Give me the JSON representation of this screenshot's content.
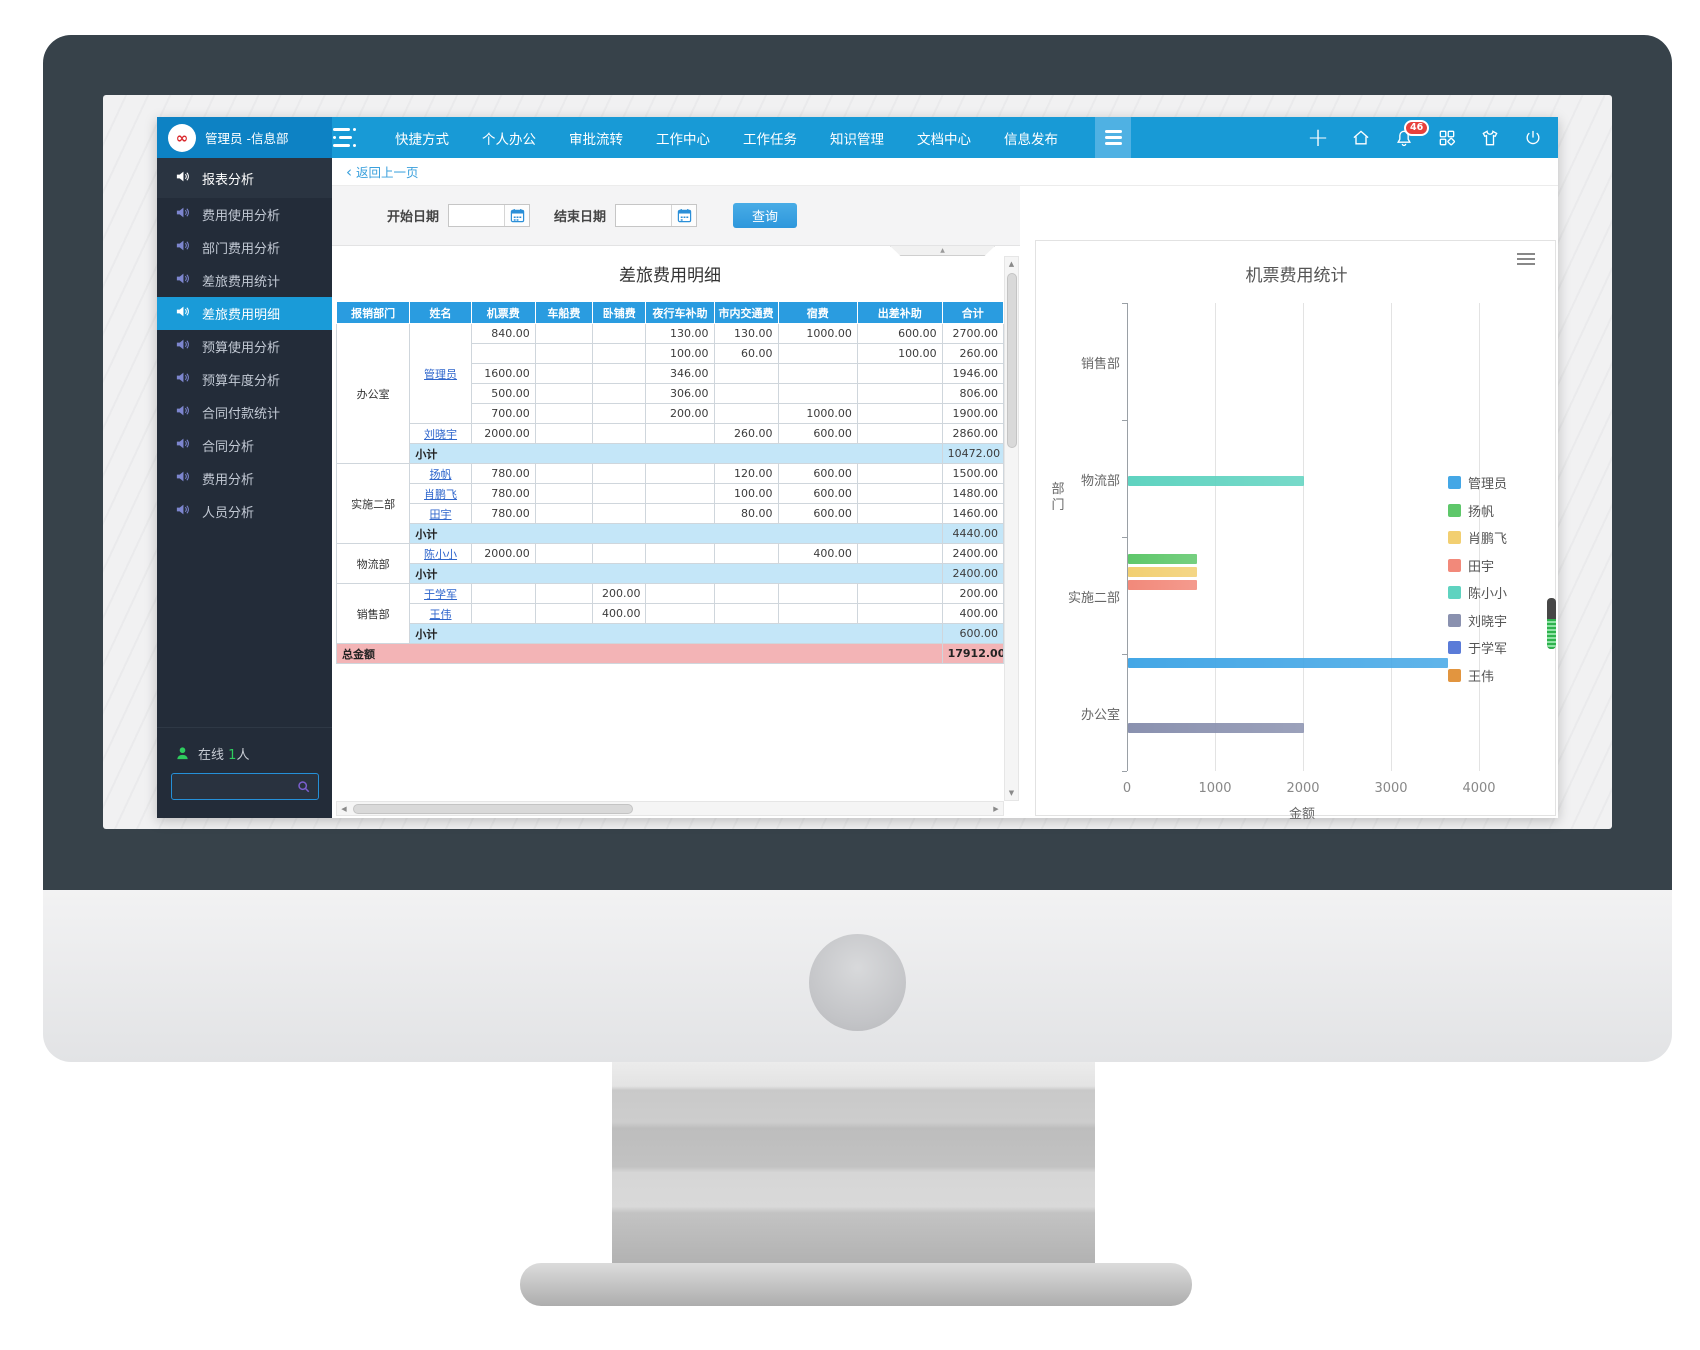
{
  "navbar": {
    "user_label": "管理员 -信息部",
    "menu": [
      "快捷方式",
      "个人办公",
      "审批流转",
      "工作中心",
      "工作任务",
      "知识管理",
      "文档中心",
      "信息发布"
    ],
    "badge_count": "46"
  },
  "sidebar": {
    "header": "报表分析",
    "items": [
      {
        "label": "费用使用分析",
        "active": false
      },
      {
        "label": "部门费用分析",
        "active": false
      },
      {
        "label": "差旅费用统计",
        "active": false
      },
      {
        "label": "差旅费用明细",
        "active": true
      },
      {
        "label": "预算使用分析",
        "active": false
      },
      {
        "label": "预算年度分析",
        "active": false
      },
      {
        "label": "合同付款统计",
        "active": false
      },
      {
        "label": "合同分析",
        "active": false
      },
      {
        "label": "费用分析",
        "active": false
      },
      {
        "label": "人员分析",
        "active": false
      }
    ],
    "online_label": "在线",
    "online_count": "1",
    "online_suffix": "人",
    "search_value": ""
  },
  "toolbar": {
    "back_label": "返回上一页",
    "start_date_label": "开始日期",
    "start_date_value": "",
    "end_date_label": "结束日期",
    "end_date_value": "",
    "query_label": "查询"
  },
  "table": {
    "title": "差旅费用明细",
    "headers": [
      "报销部门",
      "姓名",
      "机票费",
      "车船费",
      "卧铺费",
      "夜行车补助",
      "市内交通费",
      "宿费",
      "出差补助",
      "合计"
    ],
    "subtotal_label": "小计",
    "groups": [
      {
        "dept": "办公室",
        "rows": [
          {
            "name": "管理员",
            "name_span": 5,
            "fees": [
              "840.00",
              "",
              "",
              "130.00",
              "130.00",
              "1000.00",
              "600.00"
            ],
            "total": "2700.00"
          },
          {
            "name": "",
            "name_span": 0,
            "fees": [
              "",
              "",
              "",
              "100.00",
              "60.00",
              "",
              "100.00"
            ],
            "total": "260.00"
          },
          {
            "name": "",
            "name_span": 0,
            "fees": [
              "1600.00",
              "",
              "",
              "346.00",
              "",
              "",
              ""
            ],
            "total": "1946.00"
          },
          {
            "name": "",
            "name_span": 0,
            "fees": [
              "500.00",
              "",
              "",
              "306.00",
              "",
              "",
              ""
            ],
            "total": "806.00"
          },
          {
            "name": "",
            "name_span": 0,
            "fees": [
              "700.00",
              "",
              "",
              "200.00",
              "",
              "1000.00",
              ""
            ],
            "total": "1900.00"
          },
          {
            "name": "刘晓宇",
            "name_span": 1,
            "fees": [
              "2000.00",
              "",
              "",
              "",
              "260.00",
              "600.00",
              ""
            ],
            "total": "2860.00"
          }
        ],
        "subtotal": "10472.00"
      },
      {
        "dept": "实施二部",
        "rows": [
          {
            "name": "扬帆",
            "name_span": 1,
            "fees": [
              "780.00",
              "",
              "",
              "",
              "120.00",
              "600.00",
              ""
            ],
            "total": "1500.00"
          },
          {
            "name": "肖鹏飞",
            "name_span": 1,
            "fees": [
              "780.00",
              "",
              "",
              "",
              "100.00",
              "600.00",
              ""
            ],
            "total": "1480.00"
          },
          {
            "name": "田宇",
            "name_span": 1,
            "fees": [
              "780.00",
              "",
              "",
              "",
              "80.00",
              "600.00",
              ""
            ],
            "total": "1460.00"
          }
        ],
        "subtotal": "4440.00"
      },
      {
        "dept": "物流部",
        "rows": [
          {
            "name": "陈小小",
            "name_span": 1,
            "fees": [
              "2000.00",
              "",
              "",
              "",
              "",
              "400.00",
              ""
            ],
            "total": "2400.00"
          }
        ],
        "subtotal": "2400.00"
      },
      {
        "dept": "销售部",
        "rows": [
          {
            "name": "于学军",
            "name_span": 1,
            "fees": [
              "",
              "",
              "200.00",
              "",
              "",
              "",
              ""
            ],
            "total": "200.00"
          },
          {
            "name": "王伟",
            "name_span": 1,
            "fees": [
              "",
              "",
              "400.00",
              "",
              "",
              "",
              ""
            ],
            "total": "400.00"
          }
        ],
        "subtotal": "600.00"
      }
    ],
    "grand_label": "总金额",
    "grand_total": "17912.00"
  },
  "chart_data": {
    "type": "bar",
    "orientation": "horizontal",
    "title": "机票费用统计",
    "categories": [
      "销售部",
      "物流部",
      "实施二部",
      "办公室"
    ],
    "series": [
      {
        "name": "管理员",
        "color": "#44a7e6",
        "values": {
          "办公室": 3640
        }
      },
      {
        "name": "扬帆",
        "color": "#5ec76a",
        "values": {
          "实施二部": 780
        }
      },
      {
        "name": "肖鹏飞",
        "color": "#f2cf71",
        "values": {
          "实施二部": 780
        }
      },
      {
        "name": "田宇",
        "color": "#f2897a",
        "values": {
          "实施二部": 780
        }
      },
      {
        "name": "陈小小",
        "color": "#5fd3c0",
        "values": {
          "物流部": 2000
        }
      },
      {
        "name": "刘晓宇",
        "color": "#8a91af",
        "values": {
          "办公室": 2000
        }
      },
      {
        "name": "于学军",
        "color": "#5a7bd8",
        "values": {}
      },
      {
        "name": "王伟",
        "color": "#e2953f",
        "values": {}
      }
    ],
    "xlabel": "金额",
    "ylabel": "部门",
    "x_ticks": [
      0,
      1000,
      2000,
      3000,
      4000
    ],
    "xlim": [
      0,
      4500
    ],
    "grid": true,
    "legend_position": "right"
  },
  "colors": {
    "navbar_blue": "#189ad6",
    "navbar_left_blue": "#0d82c4",
    "sidebar_bg": "#232c39",
    "active_item_blue": "#1a9bd8",
    "table_header_blue": "#2a9ce0",
    "subtotal_row_blue": "#c4e6f8",
    "grand_row_pink": "#f3b4b6",
    "badge_red": "#e8413c",
    "online_green": "#2ecc5e"
  }
}
